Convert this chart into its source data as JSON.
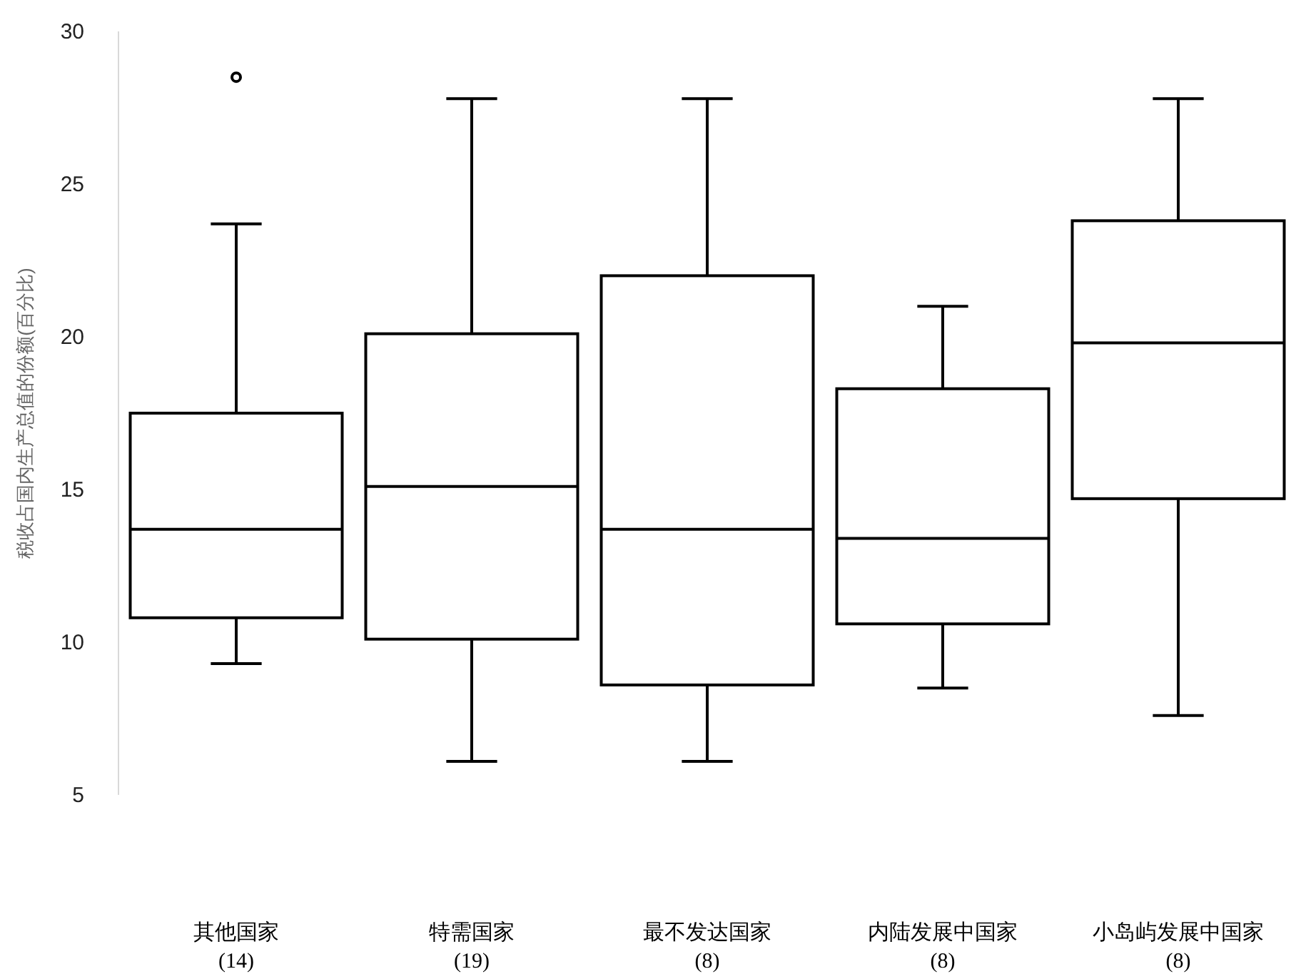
{
  "chart_data": {
    "type": "box",
    "ylabel": "税收占国内生产总值的份额(百分比)",
    "categories": [
      "其他国家\n(14)",
      "特需国家\n(19)",
      "最不发达国家\n(8)",
      "内陆发展中国家\n(8)",
      "小岛屿发展中国家\n(8)"
    ],
    "boxes": [
      {
        "low": 9.3,
        "q1": 10.8,
        "median": 13.7,
        "q3": 17.5,
        "high": 23.7,
        "outliers": [
          28.5
        ]
      },
      {
        "low": 6.1,
        "q1": 10.1,
        "median": 15.1,
        "q3": 20.1,
        "high": 27.8
      },
      {
        "low": 6.1,
        "q1": 8.6,
        "median": 13.7,
        "q3": 22.0,
        "high": 27.8
      },
      {
        "low": 8.5,
        "q1": 10.6,
        "median": 13.4,
        "q3": 18.3,
        "high": 21.0
      },
      {
        "low": 7.6,
        "q1": 14.7,
        "median": 19.8,
        "q3": 23.8,
        "high": 27.8
      }
    ],
    "color": "#000000",
    "ylim": [
      5,
      30
    ],
    "yticks": [
      5,
      10,
      15,
      20,
      25,
      30
    ]
  }
}
